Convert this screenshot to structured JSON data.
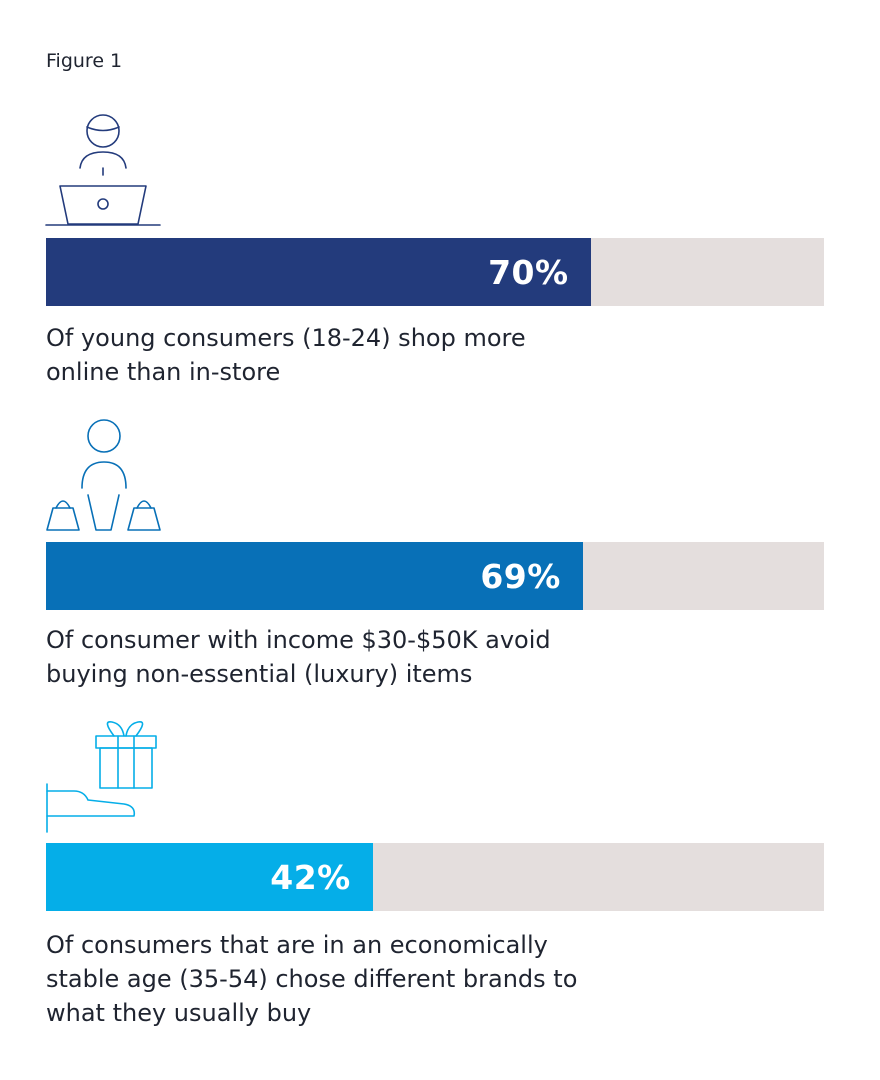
{
  "figure_label": "Figure 1",
  "chart_data": {
    "type": "bar",
    "orientation": "horizontal",
    "xlim": [
      0,
      100
    ],
    "grid": false,
    "bars": [
      {
        "value": 70,
        "label": "70%",
        "caption": "Of young consumers (18-24) shop more online than in-store",
        "color": "#233b7c",
        "icon": "person-laptop-icon"
      },
      {
        "value": 69,
        "label": "69%",
        "caption": "Of consumer with income $30-$50K avoid buying non-essential (luxury) items",
        "color": "#0870b7",
        "icon": "person-shopping-bags-icon"
      },
      {
        "value": 42,
        "label": "42%",
        "caption": "Of consumers that are in an economically stable age (35-54) chose different brands to what they usually buy",
        "color": "#05aee8",
        "icon": "hand-gift-icon"
      }
    ],
    "track_color": "#e4dedd"
  }
}
